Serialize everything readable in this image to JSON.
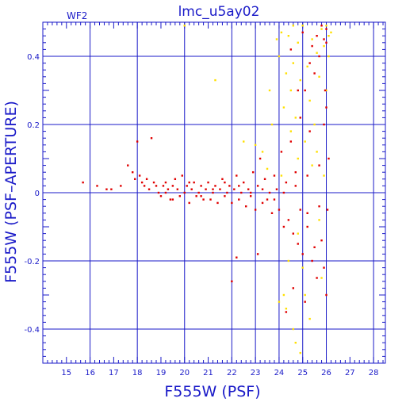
{
  "chart_data": {
    "type": "scatter",
    "title": "lmc_u5ay02",
    "subtitle": "WF2",
    "xlabel": "F555W (PSF)",
    "ylabel": "F555W (PSF–APERTURE)",
    "xlim": [
      14,
      28.5
    ],
    "ylim": [
      -0.5,
      0.5
    ],
    "xticks": [
      "15",
      "16",
      "17",
      "18",
      "19",
      "20",
      "21",
      "22",
      "23",
      "24",
      "25",
      "26",
      "27",
      "28"
    ],
    "yticks": [
      "0.4",
      "0.2",
      "0",
      "-0.2",
      "-0.4"
    ],
    "grid": true,
    "colors": {
      "axis": "#1a1ac8",
      "grid": "#1a1ac8",
      "series_red": "#e00000",
      "series_yellow": "#ffe000"
    },
    "series": [
      {
        "color": "#ffe000",
        "points": [
          [
            20.0,
            0.49
          ],
          [
            21.3,
            0.33
          ],
          [
            22.5,
            0.15
          ],
          [
            23.0,
            0.14
          ],
          [
            23.3,
            0.12
          ],
          [
            23.6,
            0.3
          ],
          [
            23.7,
            0.2
          ],
          [
            23.9,
            0.45
          ],
          [
            24.0,
            0.4
          ],
          [
            24.1,
            0.47
          ],
          [
            24.2,
            0.25
          ],
          [
            24.3,
            0.35
          ],
          [
            24.4,
            0.46
          ],
          [
            24.5,
            0.3
          ],
          [
            24.6,
            0.38
          ],
          [
            24.7,
            0.22
          ],
          [
            24.8,
            0.44
          ],
          [
            24.9,
            0.33
          ],
          [
            25.0,
            0.49
          ],
          [
            25.1,
            0.15
          ],
          [
            25.2,
            0.37
          ],
          [
            25.3,
            0.27
          ],
          [
            25.4,
            0.45
          ],
          [
            25.5,
            0.2
          ],
          [
            25.6,
            0.41
          ],
          [
            25.7,
            0.34
          ],
          [
            25.8,
            0.48
          ],
          [
            25.9,
            0.43
          ],
          [
            26.0,
            0.49
          ],
          [
            26.1,
            0.46
          ],
          [
            26.2,
            0.47
          ],
          [
            24.2,
            -0.3
          ],
          [
            24.3,
            -0.34
          ],
          [
            24.6,
            -0.4
          ],
          [
            24.7,
            -0.44
          ],
          [
            24.9,
            -0.47
          ],
          [
            25.1,
            -0.3
          ],
          [
            25.3,
            -0.37
          ],
          [
            24.4,
            -0.2
          ],
          [
            25.8,
            -0.25
          ],
          [
            24.0,
            -0.32
          ],
          [
            24.8,
            0.1
          ],
          [
            25.4,
            0.08
          ],
          [
            23.5,
            0.07
          ],
          [
            24.1,
            0.05
          ],
          [
            24.5,
            0.18
          ],
          [
            25.6,
            0.12
          ],
          [
            26.0,
            0.3
          ],
          [
            24.8,
            -0.12
          ],
          [
            25.7,
            -0.08
          ],
          [
            26.1,
            0.4
          ],
          [
            24.6,
            0.49
          ],
          [
            25.0,
            -0.22
          ],
          [
            25.9,
            0.05
          ]
        ]
      },
      {
        "color": "#e00000",
        "points": [
          [
            15.7,
            0.03
          ],
          [
            16.3,
            0.02
          ],
          [
            16.7,
            0.01
          ],
          [
            16.9,
            0.01
          ],
          [
            17.3,
            0.02
          ],
          [
            17.6,
            0.08
          ],
          [
            17.8,
            0.06
          ],
          [
            17.9,
            0.04
          ],
          [
            18.0,
            0.15
          ],
          [
            18.1,
            0.05
          ],
          [
            18.2,
            0.03
          ],
          [
            18.3,
            0.02
          ],
          [
            18.4,
            0.04
          ],
          [
            18.5,
            0.01
          ],
          [
            18.6,
            0.16
          ],
          [
            18.7,
            0.03
          ],
          [
            18.8,
            0.02
          ],
          [
            18.9,
            0.0
          ],
          [
            19.0,
            -0.01
          ],
          [
            19.1,
            0.02
          ],
          [
            19.2,
            0.03
          ],
          [
            19.3,
            0.01
          ],
          [
            19.4,
            -0.02
          ],
          [
            19.5,
            0.02
          ],
          [
            19.6,
            0.04
          ],
          [
            19.7,
            0.01
          ],
          [
            19.8,
            -0.01
          ],
          [
            19.9,
            0.05
          ],
          [
            20.0,
            0.0
          ],
          [
            20.1,
            0.02
          ],
          [
            20.2,
            -0.03
          ],
          [
            20.3,
            0.01
          ],
          [
            20.4,
            0.03
          ],
          [
            20.5,
            -0.01
          ],
          [
            20.6,
            0.0
          ],
          [
            20.7,
            0.02
          ],
          [
            20.8,
            -0.02
          ],
          [
            20.9,
            0.01
          ],
          [
            21.0,
            0.03
          ],
          [
            21.1,
            -0.02
          ],
          [
            21.2,
            0.0
          ],
          [
            21.3,
            0.02
          ],
          [
            21.4,
            -0.03
          ],
          [
            21.5,
            0.01
          ],
          [
            21.6,
            0.04
          ],
          [
            21.7,
            -0.01
          ],
          [
            21.8,
            0.0
          ],
          [
            21.9,
            0.02
          ],
          [
            22.0,
            -0.03
          ],
          [
            22.1,
            0.01
          ],
          [
            22.2,
            0.05
          ],
          [
            22.3,
            -0.02
          ],
          [
            22.4,
            0.0
          ],
          [
            22.5,
            0.03
          ],
          [
            22.6,
            -0.04
          ],
          [
            22.7,
            0.01
          ],
          [
            22.8,
            -0.01
          ],
          [
            22.9,
            0.06
          ],
          [
            23.0,
            -0.05
          ],
          [
            23.1,
            0.02
          ],
          [
            23.2,
            0.1
          ],
          [
            23.3,
            -0.03
          ],
          [
            23.4,
            0.04
          ],
          [
            23.5,
            -0.02
          ],
          [
            23.6,
            0.0
          ],
          [
            23.7,
            -0.06
          ],
          [
            23.8,
            0.05
          ],
          [
            23.9,
            0.01
          ],
          [
            24.0,
            -0.05
          ],
          [
            24.1,
            0.12
          ],
          [
            24.2,
            -0.1
          ],
          [
            24.3,
            0.03
          ],
          [
            24.4,
            -0.08
          ],
          [
            24.5,
            0.15
          ],
          [
            24.6,
            -0.12
          ],
          [
            24.7,
            0.06
          ],
          [
            24.8,
            -0.15
          ],
          [
            24.9,
            0.22
          ],
          [
            25.0,
            -0.18
          ],
          [
            25.1,
            0.3
          ],
          [
            25.2,
            -0.06
          ],
          [
            25.3,
            0.18
          ],
          [
            25.4,
            -0.2
          ],
          [
            25.5,
            0.35
          ],
          [
            25.6,
            -0.25
          ],
          [
            25.7,
            0.4
          ],
          [
            25.8,
            -0.14
          ],
          [
            25.9,
            0.45
          ],
          [
            26.0,
            0.48
          ],
          [
            26.1,
            0.1
          ],
          [
            25.95,
            0.3
          ],
          [
            26.05,
            -0.05
          ],
          [
            22.0,
            -0.26
          ],
          [
            22.2,
            -0.19
          ],
          [
            23.1,
            -0.18
          ],
          [
            24.3,
            -0.35
          ],
          [
            19.2,
            0.0
          ],
          [
            19.5,
            -0.02
          ],
          [
            20.2,
            0.03
          ],
          [
            20.7,
            -0.01
          ],
          [
            21.2,
            0.01
          ],
          [
            21.7,
            0.03
          ],
          [
            22.3,
            0.02
          ],
          [
            22.8,
            0.0
          ],
          [
            23.3,
            0.01
          ],
          [
            23.8,
            -0.02
          ],
          [
            24.2,
            0.0
          ],
          [
            24.7,
            0.02
          ],
          [
            25.2,
            0.05
          ],
          [
            25.7,
            0.08
          ],
          [
            25.9,
            0.2
          ],
          [
            26.0,
            0.25
          ],
          [
            24.5,
            0.42
          ],
          [
            25.0,
            0.47
          ],
          [
            25.4,
            0.43
          ],
          [
            25.6,
            0.46
          ],
          [
            25.8,
            0.49
          ],
          [
            26.0,
            0.44
          ],
          [
            24.8,
            0.3
          ],
          [
            25.3,
            0.38
          ],
          [
            24.6,
            -0.28
          ],
          [
            25.1,
            -0.32
          ],
          [
            25.5,
            -0.16
          ],
          [
            25.9,
            -0.22
          ],
          [
            26.0,
            -0.3
          ],
          [
            24.9,
            -0.05
          ],
          [
            25.2,
            -0.1
          ],
          [
            25.7,
            -0.04
          ]
        ]
      }
    ]
  }
}
